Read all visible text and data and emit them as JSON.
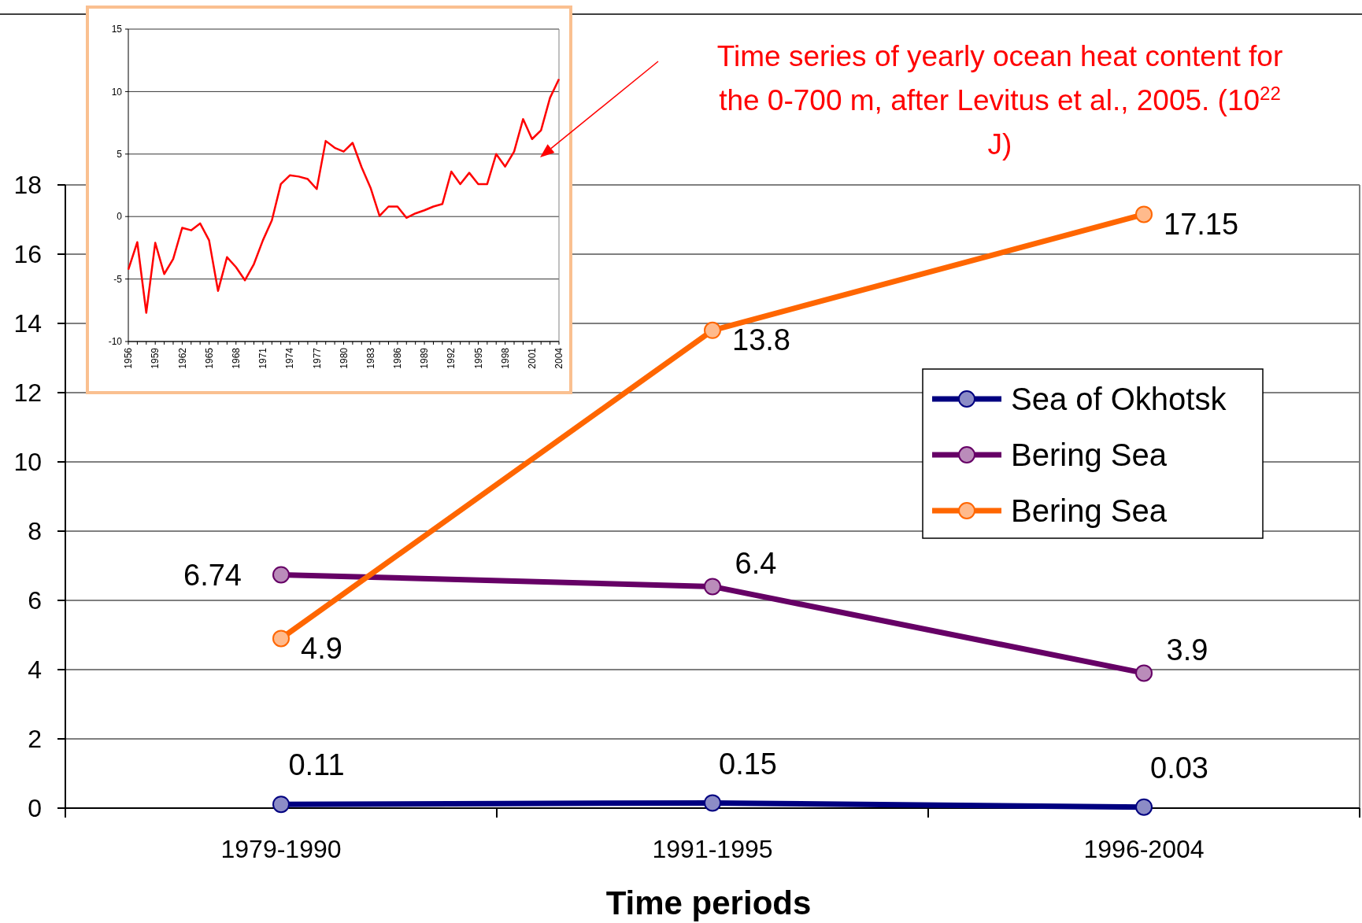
{
  "chart_data": [
    {
      "type": "line",
      "xlabel": "Time periods",
      "categories": [
        "1979-1990",
        "1991-1995",
        "1996-2004"
      ],
      "series": [
        {
          "name": "Sea of Okhotsk",
          "color": "#000080",
          "values": [
            0.11,
            0.15,
            0.03
          ]
        },
        {
          "name": "Bering Sea",
          "color": "#660066",
          "values": [
            6.74,
            6.4,
            3.9
          ]
        },
        {
          "name": "Bering Sea",
          "color": "#ff6600",
          "values": [
            4.9,
            13.8,
            17.15
          ]
        }
      ],
      "ylim": [
        0,
        18
      ],
      "yticks": [
        0,
        2,
        4,
        6,
        8,
        10,
        12,
        14,
        16,
        18
      ],
      "grid": "y",
      "legend": "right",
      "marker": "circle",
      "data_labels": true
    },
    {
      "type": "line",
      "x": [
        1956,
        1957,
        1958,
        1959,
        1960,
        1961,
        1962,
        1963,
        1964,
        1965,
        1966,
        1967,
        1968,
        1969,
        1970,
        1971,
        1972,
        1973,
        1974,
        1975,
        1976,
        1977,
        1978,
        1979,
        1980,
        1981,
        1982,
        1983,
        1984,
        1985,
        1986,
        1987,
        1988,
        1989,
        1990,
        1991,
        1992,
        1993,
        1994,
        1995,
        1996,
        1997,
        1998,
        1999,
        2000,
        2001,
        2002,
        2003,
        2004
      ],
      "series": [
        {
          "color": "#ff0000",
          "values": [
            -4.25,
            -2.05,
            -7.7,
            -2.1,
            -4.6,
            -3.4,
            -0.9,
            -1.1,
            -0.55,
            -1.9,
            -5.95,
            -3.25,
            -4.05,
            -5.1,
            -3.8,
            -1.9,
            -0.3,
            2.6,
            3.3,
            3.2,
            3.0,
            2.2,
            6.05,
            5.5,
            5.2,
            5.9,
            3.95,
            2.3,
            0.05,
            0.8,
            0.8,
            -0.1,
            0.25,
            0.5,
            0.8,
            1.0,
            3.6,
            2.6,
            3.5,
            2.6,
            2.6,
            5.0,
            4.0,
            5.2,
            7.8,
            6.2,
            6.9,
            9.5,
            11.0
          ]
        }
      ],
      "xlim": [
        1956,
        2004
      ],
      "xticks": [
        1956,
        1959,
        1962,
        1965,
        1968,
        1971,
        1974,
        1977,
        1980,
        1983,
        1986,
        1989,
        1992,
        1995,
        1998,
        2001,
        2004
      ],
      "ylim": [
        -10,
        15
      ],
      "yticks": [
        -10,
        -5,
        0,
        5,
        10,
        15
      ],
      "grid": "y",
      "annotations": [
        "Time series of yearly ocean heat content for the 0-700 m, after Levitus et al., 2005. (10$^{22}$ J)"
      ]
    }
  ]
}
